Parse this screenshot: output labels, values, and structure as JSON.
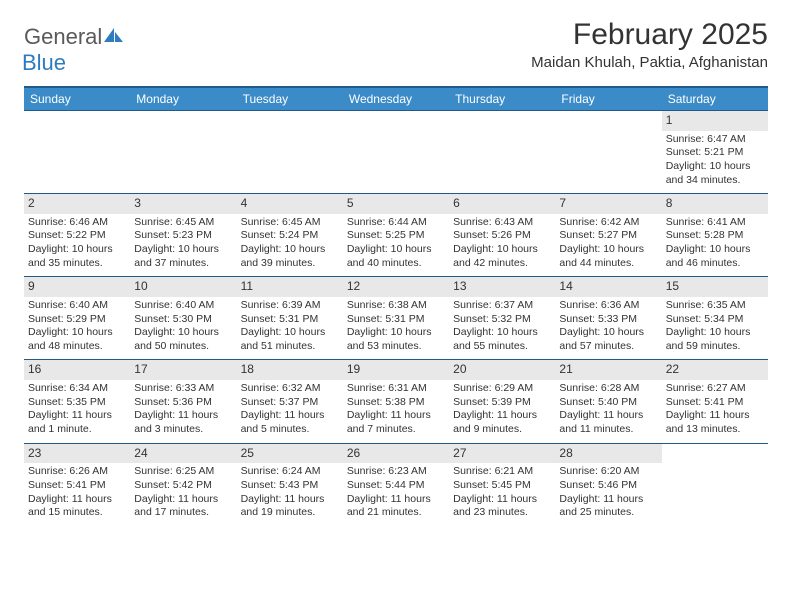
{
  "logo": {
    "text_general": "General",
    "text_blue": "Blue",
    "icon_fill": "#2f7bbf"
  },
  "header": {
    "month_title": "February 2025",
    "location": "Maidan Khulah, Paktia, Afghanistan"
  },
  "colors": {
    "header_bg": "#3b8bc8",
    "header_border": "#1f5a8a",
    "daynum_bg": "#e8e8e8",
    "text": "#333333"
  },
  "weekdays": [
    "Sunday",
    "Monday",
    "Tuesday",
    "Wednesday",
    "Thursday",
    "Friday",
    "Saturday"
  ],
  "weeks": [
    [
      null,
      null,
      null,
      null,
      null,
      null,
      {
        "num": "1",
        "sunrise": "Sunrise: 6:47 AM",
        "sunset": "Sunset: 5:21 PM",
        "daylight": "Daylight: 10 hours and 34 minutes."
      }
    ],
    [
      {
        "num": "2",
        "sunrise": "Sunrise: 6:46 AM",
        "sunset": "Sunset: 5:22 PM",
        "daylight": "Daylight: 10 hours and 35 minutes."
      },
      {
        "num": "3",
        "sunrise": "Sunrise: 6:45 AM",
        "sunset": "Sunset: 5:23 PM",
        "daylight": "Daylight: 10 hours and 37 minutes."
      },
      {
        "num": "4",
        "sunrise": "Sunrise: 6:45 AM",
        "sunset": "Sunset: 5:24 PM",
        "daylight": "Daylight: 10 hours and 39 minutes."
      },
      {
        "num": "5",
        "sunrise": "Sunrise: 6:44 AM",
        "sunset": "Sunset: 5:25 PM",
        "daylight": "Daylight: 10 hours and 40 minutes."
      },
      {
        "num": "6",
        "sunrise": "Sunrise: 6:43 AM",
        "sunset": "Sunset: 5:26 PM",
        "daylight": "Daylight: 10 hours and 42 minutes."
      },
      {
        "num": "7",
        "sunrise": "Sunrise: 6:42 AM",
        "sunset": "Sunset: 5:27 PM",
        "daylight": "Daylight: 10 hours and 44 minutes."
      },
      {
        "num": "8",
        "sunrise": "Sunrise: 6:41 AM",
        "sunset": "Sunset: 5:28 PM",
        "daylight": "Daylight: 10 hours and 46 minutes."
      }
    ],
    [
      {
        "num": "9",
        "sunrise": "Sunrise: 6:40 AM",
        "sunset": "Sunset: 5:29 PM",
        "daylight": "Daylight: 10 hours and 48 minutes."
      },
      {
        "num": "10",
        "sunrise": "Sunrise: 6:40 AM",
        "sunset": "Sunset: 5:30 PM",
        "daylight": "Daylight: 10 hours and 50 minutes."
      },
      {
        "num": "11",
        "sunrise": "Sunrise: 6:39 AM",
        "sunset": "Sunset: 5:31 PM",
        "daylight": "Daylight: 10 hours and 51 minutes."
      },
      {
        "num": "12",
        "sunrise": "Sunrise: 6:38 AM",
        "sunset": "Sunset: 5:31 PM",
        "daylight": "Daylight: 10 hours and 53 minutes."
      },
      {
        "num": "13",
        "sunrise": "Sunrise: 6:37 AM",
        "sunset": "Sunset: 5:32 PM",
        "daylight": "Daylight: 10 hours and 55 minutes."
      },
      {
        "num": "14",
        "sunrise": "Sunrise: 6:36 AM",
        "sunset": "Sunset: 5:33 PM",
        "daylight": "Daylight: 10 hours and 57 minutes."
      },
      {
        "num": "15",
        "sunrise": "Sunrise: 6:35 AM",
        "sunset": "Sunset: 5:34 PM",
        "daylight": "Daylight: 10 hours and 59 minutes."
      }
    ],
    [
      {
        "num": "16",
        "sunrise": "Sunrise: 6:34 AM",
        "sunset": "Sunset: 5:35 PM",
        "daylight": "Daylight: 11 hours and 1 minute."
      },
      {
        "num": "17",
        "sunrise": "Sunrise: 6:33 AM",
        "sunset": "Sunset: 5:36 PM",
        "daylight": "Daylight: 11 hours and 3 minutes."
      },
      {
        "num": "18",
        "sunrise": "Sunrise: 6:32 AM",
        "sunset": "Sunset: 5:37 PM",
        "daylight": "Daylight: 11 hours and 5 minutes."
      },
      {
        "num": "19",
        "sunrise": "Sunrise: 6:31 AM",
        "sunset": "Sunset: 5:38 PM",
        "daylight": "Daylight: 11 hours and 7 minutes."
      },
      {
        "num": "20",
        "sunrise": "Sunrise: 6:29 AM",
        "sunset": "Sunset: 5:39 PM",
        "daylight": "Daylight: 11 hours and 9 minutes."
      },
      {
        "num": "21",
        "sunrise": "Sunrise: 6:28 AM",
        "sunset": "Sunset: 5:40 PM",
        "daylight": "Daylight: 11 hours and 11 minutes."
      },
      {
        "num": "22",
        "sunrise": "Sunrise: 6:27 AM",
        "sunset": "Sunset: 5:41 PM",
        "daylight": "Daylight: 11 hours and 13 minutes."
      }
    ],
    [
      {
        "num": "23",
        "sunrise": "Sunrise: 6:26 AM",
        "sunset": "Sunset: 5:41 PM",
        "daylight": "Daylight: 11 hours and 15 minutes."
      },
      {
        "num": "24",
        "sunrise": "Sunrise: 6:25 AM",
        "sunset": "Sunset: 5:42 PM",
        "daylight": "Daylight: 11 hours and 17 minutes."
      },
      {
        "num": "25",
        "sunrise": "Sunrise: 6:24 AM",
        "sunset": "Sunset: 5:43 PM",
        "daylight": "Daylight: 11 hours and 19 minutes."
      },
      {
        "num": "26",
        "sunrise": "Sunrise: 6:23 AM",
        "sunset": "Sunset: 5:44 PM",
        "daylight": "Daylight: 11 hours and 21 minutes."
      },
      {
        "num": "27",
        "sunrise": "Sunrise: 6:21 AM",
        "sunset": "Sunset: 5:45 PM",
        "daylight": "Daylight: 11 hours and 23 minutes."
      },
      {
        "num": "28",
        "sunrise": "Sunrise: 6:20 AM",
        "sunset": "Sunset: 5:46 PM",
        "daylight": "Daylight: 11 hours and 25 minutes."
      },
      null
    ]
  ]
}
